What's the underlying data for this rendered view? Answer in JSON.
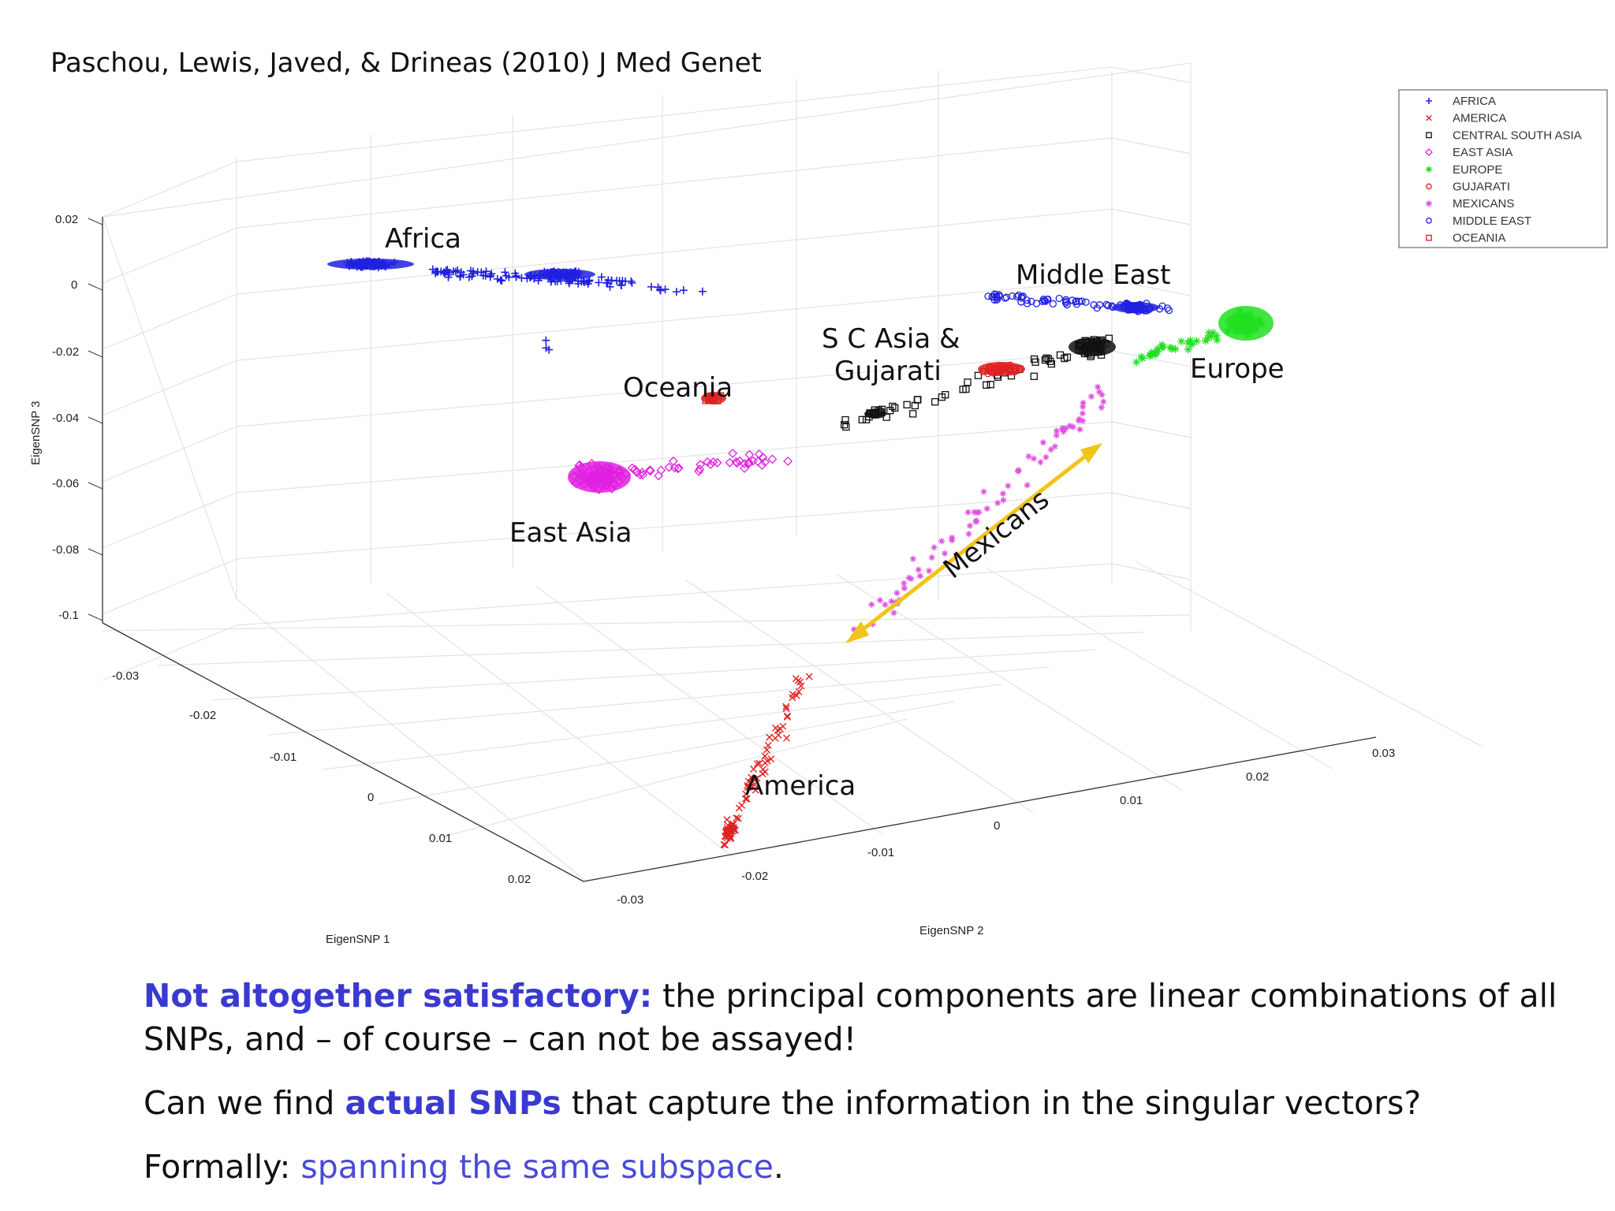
{
  "citation": "Paschou, Lewis, Javed, & Drineas (2010) J Med Genet",
  "chart_data": {
    "type": "scatter",
    "projection": "3d",
    "xlabel": "EigenSNP 1",
    "ylabel": "EigenSNP 2",
    "zlabel": "EigenSNP 3",
    "x_ticks": [
      "-0.03",
      "-0.02",
      "-0.01",
      "0",
      "0.01",
      "0.02"
    ],
    "y_ticks": [
      "-0.03",
      "-0.02",
      "-0.01",
      "0",
      "0.01",
      "0.02",
      "0.03"
    ],
    "z_ticks": [
      "0.02",
      "0",
      "-0.02",
      "-0.04",
      "-0.06",
      "-0.08",
      "-0.1"
    ],
    "xlim": [
      -0.03,
      0.02
    ],
    "ylim": [
      -0.03,
      0.03
    ],
    "zlim": [
      -0.1,
      0.02
    ],
    "grid": true,
    "legend_position": "top-right",
    "legend": [
      {
        "name": "AFRICA",
        "marker": "+",
        "color": "#2020e0"
      },
      {
        "name": "AMERICA",
        "marker": "x",
        "color": "#e02020"
      },
      {
        "name": "CENTRAL SOUTH ASIA",
        "marker": "square",
        "color": "#111111"
      },
      {
        "name": "EAST ASIA",
        "marker": "diamond",
        "color": "#e020e0"
      },
      {
        "name": "EUROPE",
        "marker": "*",
        "color": "#20e020"
      },
      {
        "name": "GUJARATI",
        "marker": "circle",
        "color": "#e02020"
      },
      {
        "name": "MEXICANS",
        "marker": "*",
        "color": "#e050e0"
      },
      {
        "name": "MIDDLE EAST",
        "marker": "circle",
        "color": "#2020e0"
      },
      {
        "name": "OCEANIA",
        "marker": "square",
        "color": "#e02020"
      }
    ],
    "annotations": [
      "Africa",
      "Middle East",
      "S C Asia &",
      "Gujarati",
      "Europe",
      "Oceania",
      "East Asia",
      "Mexicans",
      "America"
    ],
    "arrow_color": "#f0c419"
  },
  "text": {
    "p1_highlight": "Not altogether satisfactory:",
    "p1_rest": " the principal components are linear combinations of all SNPs, and – of course – can not be assayed!",
    "p2_a": "Can we find ",
    "p2_highlight": "actual SNPs",
    "p2_b": " that capture the information in the singular vectors?",
    "p3_a": "Formally: ",
    "p3_highlight": "spanning the same subspace",
    "p3_b": "."
  }
}
